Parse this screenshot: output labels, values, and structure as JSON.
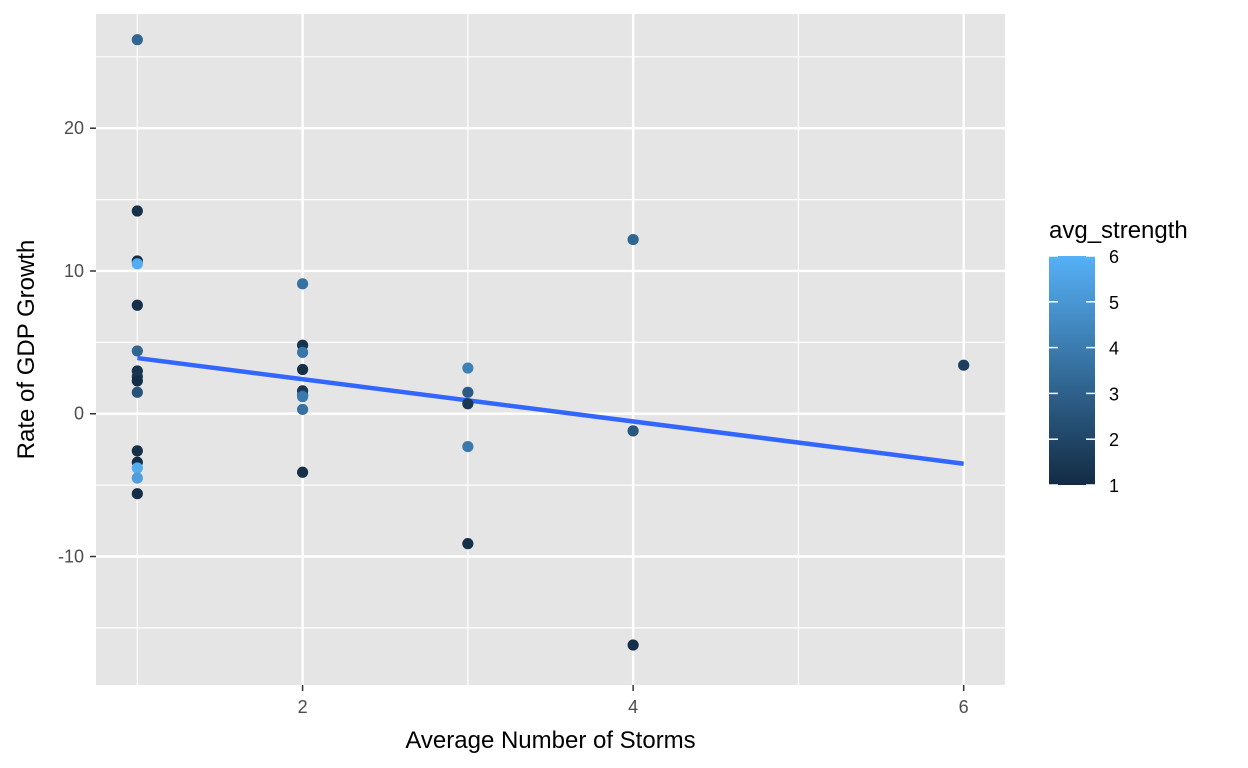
{
  "chart_data": {
    "type": "scatter",
    "title": "",
    "xlabel": "Average Number of Storms",
    "ylabel": "Rate of GDP Growth",
    "xlim": [
      0.75,
      6.25
    ],
    "ylim": [
      -19,
      28
    ],
    "x_ticks": [
      2,
      4,
      6
    ],
    "x_tick_labels": [
      "2",
      "4",
      "6"
    ],
    "x_minor_ticks": [
      1,
      3,
      5
    ],
    "y_ticks": [
      -10,
      0,
      10,
      20
    ],
    "y_tick_labels": [
      "-10",
      "0",
      "10",
      "20"
    ],
    "y_minor_ticks": [
      -15,
      -5,
      5,
      15,
      25
    ],
    "grid": true,
    "panel_background": "#e5e5e5",
    "grid_color": "#ffffff",
    "legend": {
      "title": "avg_strength",
      "position": "right",
      "range": [
        1,
        6
      ],
      "ticks": [
        1,
        2,
        3,
        4,
        5,
        6
      ],
      "tick_labels": [
        "1",
        "2",
        "3",
        "4",
        "5",
        "6"
      ],
      "low_color": "#132b43",
      "high_color": "#56b1f7"
    },
    "points": [
      {
        "x": 1,
        "y": 26.2,
        "strength": 3.2
      },
      {
        "x": 1,
        "y": 14.2,
        "strength": 1.2
      },
      {
        "x": 1,
        "y": 10.7,
        "strength": 1.1
      },
      {
        "x": 1,
        "y": 10.5,
        "strength": 5.8
      },
      {
        "x": 1,
        "y": 7.6,
        "strength": 1.2
      },
      {
        "x": 1,
        "y": 4.4,
        "strength": 3.2
      },
      {
        "x": 1,
        "y": 3.0,
        "strength": 1.3
      },
      {
        "x": 1,
        "y": 2.6,
        "strength": 1.4
      },
      {
        "x": 1,
        "y": 2.3,
        "strength": 1.1
      },
      {
        "x": 1,
        "y": 1.5,
        "strength": 2.5
      },
      {
        "x": 1,
        "y": -2.6,
        "strength": 1.2
      },
      {
        "x": 1,
        "y": -3.4,
        "strength": 1.1
      },
      {
        "x": 1,
        "y": -3.8,
        "strength": 5.8
      },
      {
        "x": 1,
        "y": -4.5,
        "strength": 5.3
      },
      {
        "x": 1,
        "y": -5.6,
        "strength": 1.1
      },
      {
        "x": 2,
        "y": 9.1,
        "strength": 3.6
      },
      {
        "x": 2,
        "y": 4.8,
        "strength": 1.3
      },
      {
        "x": 2,
        "y": 4.3,
        "strength": 3.8
      },
      {
        "x": 2,
        "y": 3.1,
        "strength": 1.2
      },
      {
        "x": 2,
        "y": 1.6,
        "strength": 1.4
      },
      {
        "x": 2,
        "y": 1.3,
        "strength": 2.0
      },
      {
        "x": 2,
        "y": 1.2,
        "strength": 3.9
      },
      {
        "x": 2,
        "y": 0.3,
        "strength": 3.6
      },
      {
        "x": 2,
        "y": -4.1,
        "strength": 1.2
      },
      {
        "x": 3,
        "y": 3.2,
        "strength": 4.2
      },
      {
        "x": 3,
        "y": 1.5,
        "strength": 2.8
      },
      {
        "x": 3,
        "y": 0.7,
        "strength": 1.5
      },
      {
        "x": 3,
        "y": -2.3,
        "strength": 3.9
      },
      {
        "x": 3,
        "y": -9.1,
        "strength": 1.2
      },
      {
        "x": 4,
        "y": 12.2,
        "strength": 3.2
      },
      {
        "x": 4,
        "y": -1.2,
        "strength": 2.6
      },
      {
        "x": 4,
        "y": -16.2,
        "strength": 1.2
      },
      {
        "x": 6,
        "y": 3.4,
        "strength": 1.7
      }
    ],
    "trend_line": {
      "x": [
        1,
        6
      ],
      "y": [
        3.9,
        -3.5
      ],
      "color": "#3366ff"
    }
  }
}
